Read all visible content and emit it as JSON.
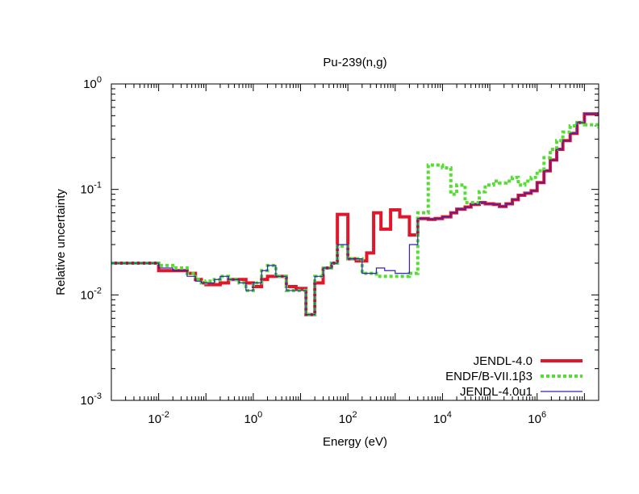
{
  "chart_data": {
    "type": "line",
    "title": "Pu-239(n,g)",
    "xlabel": "Energy (eV)",
    "ylabel": "Relative uncertainty",
    "x_scale": "log",
    "y_scale": "log",
    "xlim": [
      0.001,
      20000000
    ],
    "ylim": [
      0.001,
      1
    ],
    "grid": false,
    "legend_position": "bottom-right",
    "x_ticks": [
      {
        "base": "10",
        "exp": "-2"
      },
      {
        "base": "10",
        "exp": "0"
      },
      {
        "base": "10",
        "exp": "2"
      },
      {
        "base": "10",
        "exp": "4"
      },
      {
        "base": "10",
        "exp": "6"
      }
    ],
    "y_ticks": [
      {
        "base": "10",
        "exp": "-3"
      },
      {
        "base": "10",
        "exp": "-2"
      },
      {
        "base": "10",
        "exp": "-1"
      },
      {
        "base": "10",
        "exp": "0"
      }
    ],
    "series": [
      {
        "name": "JENDL-4.0",
        "style": "solid-thick",
        "color": "#e0162b",
        "x": [
          0.001,
          0.01,
          0.04,
          0.06,
          0.08,
          0.1,
          0.2,
          0.3,
          0.5,
          0.7,
          1.0,
          1.5,
          2.0,
          3.0,
          5.0,
          8.0,
          13.0,
          20.0,
          30.0,
          45.0,
          60.0,
          100.0,
          150.0,
          250.0,
          350.0,
          500.0,
          800.0,
          1250.0,
          2000.0,
          3000.0,
          5000.0,
          7000.0,
          10000.0,
          15000.0,
          20000.0,
          30000.0,
          40000.0,
          60000.0,
          80000.0,
          120000.0,
          160000.0,
          220000.0,
          300000.0,
          400000.0,
          550000.0,
          750000.0,
          1000000.0,
          1400000.0,
          1900000.0,
          2600000.0,
          3500000.0,
          5000000.0,
          7000000.0,
          10000000.0,
          20000000.0
        ],
        "y": [
          0.02,
          0.017,
          0.016,
          0.014,
          0.013,
          0.0125,
          0.013,
          0.014,
          0.014,
          0.013,
          0.012,
          0.014,
          0.015,
          0.015,
          0.012,
          0.0115,
          0.0065,
          0.013,
          0.018,
          0.02,
          0.058,
          0.022,
          0.021,
          0.025,
          0.06,
          0.042,
          0.064,
          0.055,
          0.037,
          0.053,
          0.052,
          0.053,
          0.055,
          0.06,
          0.065,
          0.068,
          0.072,
          0.075,
          0.073,
          0.072,
          0.069,
          0.073,
          0.08,
          0.088,
          0.092,
          0.097,
          0.116,
          0.15,
          0.19,
          0.24,
          0.29,
          0.34,
          0.43,
          0.52,
          0.54
        ]
      },
      {
        "name": "ENDF/B-VII.1β3",
        "style": "dotted-thick",
        "color": "#55dd33",
        "x": [
          0.001,
          0.01,
          0.02,
          0.04,
          0.06,
          0.08,
          0.1,
          0.15,
          0.2,
          0.3,
          0.5,
          0.7,
          1.0,
          1.5,
          2.0,
          3.0,
          5.0,
          8.0,
          13.0,
          20.0,
          30.0,
          45.0,
          60.0,
          100.0,
          200.0,
          400.0,
          600.0,
          1000.0,
          2000.0,
          3000.0,
          5000.0,
          10000.0,
          15000.0,
          20000.0,
          30000.0,
          40000.0,
          60000.0,
          80000.0,
          120000.0,
          160000.0,
          220000.0,
          300000.0,
          400000.0,
          550000.0,
          750000.0,
          1000000.0,
          1400000.0,
          1900000.0,
          2600000.0,
          3500000.0,
          5000000.0,
          7000000.0,
          10000000.0,
          20000000.0
        ],
        "y": [
          0.02,
          0.019,
          0.018,
          0.016,
          0.014,
          0.013,
          0.0135,
          0.014,
          0.015,
          0.014,
          0.013,
          0.011,
          0.013,
          0.017,
          0.019,
          0.015,
          0.011,
          0.011,
          0.0065,
          0.015,
          0.018,
          0.02,
          0.029,
          0.022,
          0.016,
          0.015,
          0.015,
          0.015,
          0.016,
          0.06,
          0.17,
          0.16,
          0.09,
          0.11,
          0.075,
          0.075,
          0.095,
          0.11,
          0.12,
          0.115,
          0.12,
          0.13,
          0.11,
          0.12,
          0.13,
          0.15,
          0.2,
          0.24,
          0.29,
          0.35,
          0.4,
          0.43,
          0.41,
          0.38
        ]
      },
      {
        "name": "JENDL-4.0u1",
        "style": "solid-thin",
        "color": "#3322bb",
        "x": [
          0.001,
          0.01,
          0.02,
          0.04,
          0.06,
          0.08,
          0.1,
          0.15,
          0.2,
          0.3,
          0.5,
          0.7,
          1.0,
          1.5,
          2.0,
          3.0,
          5.0,
          8.0,
          13.0,
          20.0,
          30.0,
          45.0,
          60.0,
          100.0,
          200.0,
          300.0,
          400.0,
          600.0,
          1000.0,
          2000.0,
          3000.0,
          5000.0,
          7000.0,
          10000.0,
          15000.0,
          20000.0,
          30000.0,
          40000.0,
          60000.0,
          80000.0,
          120000.0,
          160000.0,
          220000.0,
          300000.0,
          400000.0,
          550000.0,
          750000.0,
          1000000.0,
          1400000.0,
          1900000.0,
          2600000.0,
          3500000.0,
          5000000.0,
          7000000.0,
          10000000.0,
          20000000.0
        ],
        "y": [
          0.02,
          0.018,
          0.017,
          0.015,
          0.0135,
          0.013,
          0.013,
          0.014,
          0.015,
          0.014,
          0.013,
          0.011,
          0.013,
          0.017,
          0.019,
          0.015,
          0.011,
          0.011,
          0.0065,
          0.015,
          0.018,
          0.02,
          0.03,
          0.022,
          0.016,
          0.016,
          0.018,
          0.017,
          0.016,
          0.03,
          0.053,
          0.052,
          0.053,
          0.055,
          0.06,
          0.065,
          0.068,
          0.072,
          0.075,
          0.073,
          0.072,
          0.069,
          0.073,
          0.08,
          0.088,
          0.092,
          0.097,
          0.116,
          0.15,
          0.19,
          0.24,
          0.29,
          0.34,
          0.43,
          0.52,
          0.54
        ]
      }
    ]
  }
}
